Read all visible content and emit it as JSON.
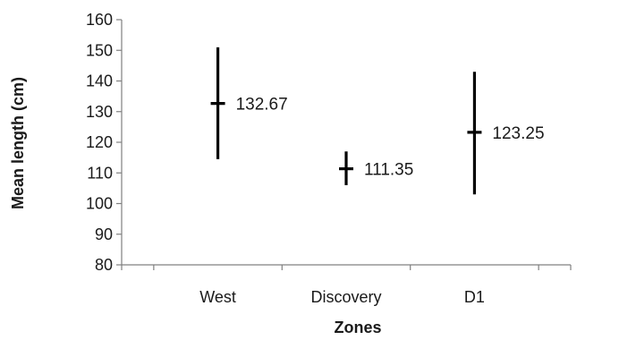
{
  "chart_data": {
    "type": "scatter",
    "subtype": "error-bar",
    "title": "",
    "xlabel": "Zones",
    "ylabel": "Mean length (cm)",
    "categories": [
      "West",
      "Discovery",
      "D1"
    ],
    "series": [
      {
        "means": [
          132.67,
          111.35,
          123.25
        ],
        "lower": [
          114.5,
          106.0,
          103.0
        ],
        "upper": [
          151.0,
          117.0,
          143.0
        ],
        "labels": [
          "132.67",
          "111.35",
          "123.25"
        ]
      }
    ],
    "ylim": [
      80,
      160
    ],
    "yticks": [
      80,
      90,
      100,
      110,
      120,
      130,
      140,
      150,
      160
    ],
    "ytick_labels": [
      "80",
      "90",
      "100",
      "110",
      "120",
      "130",
      "140",
      "150",
      "160"
    ],
    "grid": false,
    "legend": "none",
    "colors": {
      "marks": "#000000",
      "axis": "#808080",
      "text": "#1a1a1a"
    }
  }
}
